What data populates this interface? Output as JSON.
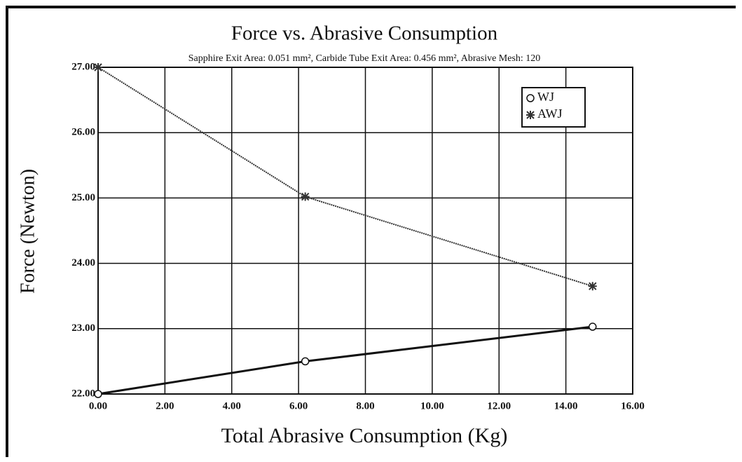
{
  "chart_data": {
    "type": "line",
    "title": "Force vs. Abrasive Consumption",
    "subtitle": "Sapphire Exit Area: 0.051 mm², Carbide Tube Exit Area: 0.456 mm², Abrasive Mesh: 120",
    "x_label": "Total Abrasive Consumption (Kg)",
    "y_label": "Force (Newton)",
    "series": [
      {
        "name": "WJ",
        "color": "#111111",
        "marker": "circle",
        "line_style": "solid",
        "x": [
          0,
          6.2,
          14.8
        ],
        "values": [
          22.0,
          22.5,
          23.03
        ]
      },
      {
        "name": "AWJ",
        "color": "#333333",
        "marker": "star",
        "line_style": "dotted",
        "x": [
          0,
          6.2,
          14.8
        ],
        "values": [
          27.0,
          25.02,
          23.65
        ]
      }
    ],
    "xlim": [
      0,
      16
    ],
    "xticks": [
      {
        "value": 0,
        "label": "0.00"
      },
      {
        "value": 2,
        "label": "2.00"
      },
      {
        "value": 4,
        "label": "4.00"
      },
      {
        "value": 6,
        "label": "6.00"
      },
      {
        "value": 8,
        "label": "8.00"
      },
      {
        "value": 10,
        "label": "10.00"
      },
      {
        "value": 12,
        "label": "12.00"
      },
      {
        "value": 14,
        "label": "14.00"
      },
      {
        "value": 16,
        "label": "16.00"
      }
    ],
    "ylim": [
      22,
      27
    ],
    "yticks": [
      {
        "value": 22,
        "label": "22.00"
      },
      {
        "value": 23,
        "label": "23.00"
      },
      {
        "value": 24,
        "label": "24.00"
      },
      {
        "value": 25,
        "label": "25.00"
      },
      {
        "value": 26,
        "label": "26.00"
      },
      {
        "value": 27,
        "label": "27.00"
      }
    ],
    "grid": true,
    "legend": "upper right"
  }
}
